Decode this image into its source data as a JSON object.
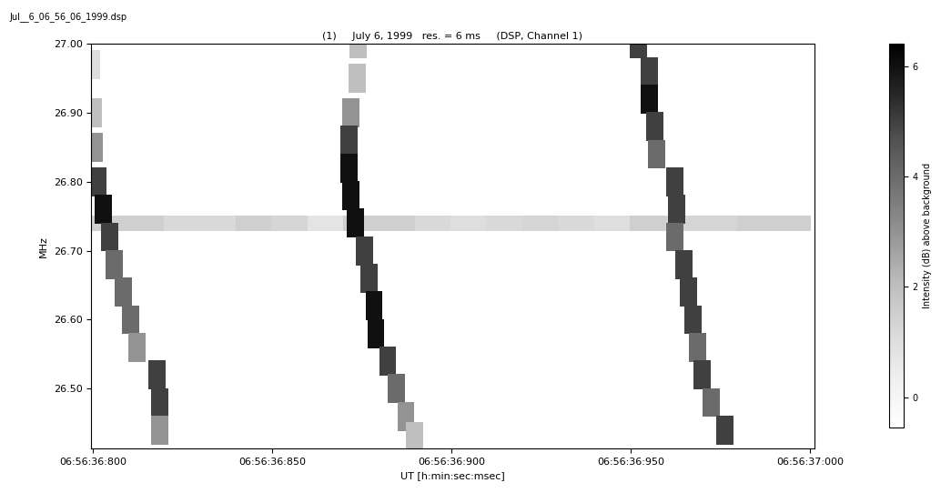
{
  "chart_data": {
    "type": "heatmap",
    "file_name": "Jul__6_06_56_06_1999.dsp",
    "title": "(1)     July 6, 1999   res. = 6 ms     (DSP, Channel 1)",
    "x_label": "UT [h:min:sec:msec]",
    "y_label": "MHz",
    "xlim": [
      36.7995,
      37.0012
    ],
    "xticks": [
      {
        "value": 36.8,
        "label": "06:56:36:800"
      },
      {
        "value": 36.85,
        "label": "06:56:36:850"
      },
      {
        "value": 36.9,
        "label": "06:56:36:900"
      },
      {
        "value": 36.95,
        "label": "06:56:36:950"
      },
      {
        "value": 37.0,
        "label": "06:56:37:000"
      }
    ],
    "ylim": [
      26.413,
      27.0
    ],
    "yticks": [
      {
        "value": 26.5,
        "label": "26.50"
      },
      {
        "value": 26.6,
        "label": "26.60"
      },
      {
        "value": 26.7,
        "label": "26.70"
      },
      {
        "value": 26.8,
        "label": "26.80"
      },
      {
        "value": 26.9,
        "label": "26.90"
      },
      {
        "value": 27.0,
        "label": "27.00"
      }
    ],
    "bursts": [
      {
        "x": [
          36.7995,
          36.8,
          36.8003,
          36.8013,
          36.8028,
          36.8046,
          36.8059,
          36.8084,
          36.8104,
          36.8122,
          36.8178,
          36.8186,
          36.8186
        ],
        "y": [
          26.97,
          26.9,
          26.85,
          26.8,
          26.76,
          26.72,
          26.68,
          26.64,
          26.6,
          26.56,
          26.52,
          26.48,
          26.44
        ],
        "values": [
          1,
          2,
          3,
          5,
          6,
          5,
          4,
          4,
          4,
          3,
          5,
          5,
          3
        ]
      },
      {
        "x": [
          36.874,
          36.8738,
          36.872,
          36.8715,
          36.8715,
          36.872,
          36.8733,
          36.8758,
          36.8771,
          36.8784,
          36.8789,
          36.8822,
          36.8847,
          36.8873,
          36.8898
        ],
        "y": [
          27.0,
          26.95,
          26.9,
          26.86,
          26.82,
          26.78,
          26.74,
          26.7,
          26.66,
          26.62,
          26.58,
          26.54,
          26.5,
          26.46,
          26.43
        ],
        "values": [
          2,
          2,
          3,
          5,
          6,
          6,
          6,
          5,
          5,
          6,
          6,
          5,
          4,
          3,
          2
        ]
      },
      {
        "x": [
          36.9522,
          36.9552,
          36.9552,
          36.9567,
          36.9573,
          36.9623,
          36.9628,
          36.9623,
          36.9649,
          36.9662,
          36.9674,
          36.9687,
          36.97,
          36.9725,
          36.9763
        ],
        "y": [
          27.0,
          26.96,
          26.92,
          26.88,
          26.84,
          26.8,
          26.76,
          26.72,
          26.68,
          26.64,
          26.6,
          26.56,
          26.52,
          26.48,
          26.44
        ],
        "values": [
          5,
          5,
          6,
          5,
          4,
          5,
          5,
          4,
          5,
          5,
          5,
          4,
          5,
          4,
          5
        ]
      }
    ],
    "band": {
      "y": 26.74,
      "x": [
        36.805,
        36.815,
        36.825,
        36.835,
        36.845,
        36.855,
        36.865,
        36.875,
        36.885,
        36.895,
        36.905,
        36.915,
        36.925,
        36.935,
        36.945,
        36.955,
        36.965,
        36.975,
        36.985,
        36.995
      ],
      "values": [
        1.5,
        1.5,
        1.2,
        1.2,
        1.5,
        1.3,
        0.8,
        1.5,
        1.5,
        1.2,
        1.0,
        1.2,
        1.3,
        1.2,
        1.0,
        1.5,
        1.3,
        1.3,
        1.5,
        1.5
      ]
    },
    "colorbar": {
      "label": "Intensity (dB) above background",
      "range": [
        -0.55,
        6.4
      ],
      "ticks": [
        0,
        2,
        4,
        6
      ]
    }
  }
}
